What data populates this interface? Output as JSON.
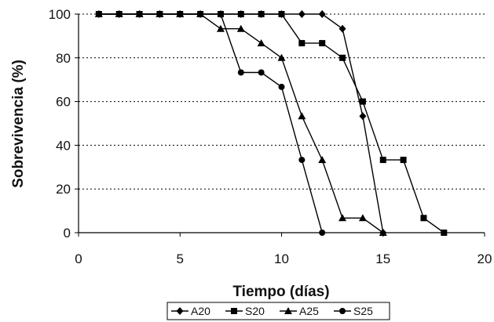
{
  "chart_data": {
    "type": "line",
    "title": "",
    "xlabel": "Tiempo (días)",
    "ylabel": "Sobrevivencia (%)",
    "xlim": [
      0,
      20
    ],
    "ylim": [
      0,
      100
    ],
    "x_ticks": [
      "0",
      "5",
      "10",
      "15",
      "20"
    ],
    "y_ticks": [
      "0",
      "20",
      "40",
      "60",
      "80",
      "100"
    ],
    "grid": "horizontal dotted",
    "legend_position": "bottom",
    "series": [
      {
        "name": "A20",
        "marker": "diamond",
        "color": "#000000",
        "points": [
          [
            1,
            100
          ],
          [
            2,
            100
          ],
          [
            3,
            100
          ],
          [
            4,
            100
          ],
          [
            5,
            100
          ],
          [
            6,
            100
          ],
          [
            7,
            100
          ],
          [
            8,
            100
          ],
          [
            9,
            100
          ],
          [
            10,
            100
          ],
          [
            11,
            100
          ],
          [
            12,
            100
          ],
          [
            13,
            93.3
          ],
          [
            14,
            53.3
          ],
          [
            15,
            0
          ]
        ]
      },
      {
        "name": "S20",
        "marker": "square",
        "color": "#000000",
        "points": [
          [
            1,
            100
          ],
          [
            2,
            100
          ],
          [
            3,
            100
          ],
          [
            4,
            100
          ],
          [
            5,
            100
          ],
          [
            6,
            100
          ],
          [
            7,
            100
          ],
          [
            8,
            100
          ],
          [
            9,
            100
          ],
          [
            10,
            100
          ],
          [
            11,
            86.7
          ],
          [
            12,
            86.7
          ],
          [
            13,
            80
          ],
          [
            14,
            60
          ],
          [
            15,
            33.3
          ],
          [
            16,
            33.3
          ],
          [
            17,
            6.7
          ],
          [
            18,
            0
          ]
        ]
      },
      {
        "name": "A25",
        "marker": "triangle",
        "color": "#000000",
        "points": [
          [
            1,
            100
          ],
          [
            2,
            100
          ],
          [
            3,
            100
          ],
          [
            4,
            100
          ],
          [
            5,
            100
          ],
          [
            6,
            100
          ],
          [
            7,
            93.3
          ],
          [
            8,
            93.3
          ],
          [
            9,
            86.7
          ],
          [
            10,
            80
          ],
          [
            11,
            53.3
          ],
          [
            12,
            33.3
          ],
          [
            13,
            6.7
          ],
          [
            14,
            6.7
          ],
          [
            15,
            0
          ]
        ]
      },
      {
        "name": "S25",
        "marker": "circle",
        "color": "#000000",
        "points": [
          [
            1,
            100
          ],
          [
            2,
            100
          ],
          [
            3,
            100
          ],
          [
            4,
            100
          ],
          [
            5,
            100
          ],
          [
            6,
            100
          ],
          [
            7,
            100
          ],
          [
            8,
            73.3
          ],
          [
            9,
            73.3
          ],
          [
            10,
            66.7
          ],
          [
            11,
            33.3
          ],
          [
            12,
            0
          ]
        ]
      }
    ]
  }
}
